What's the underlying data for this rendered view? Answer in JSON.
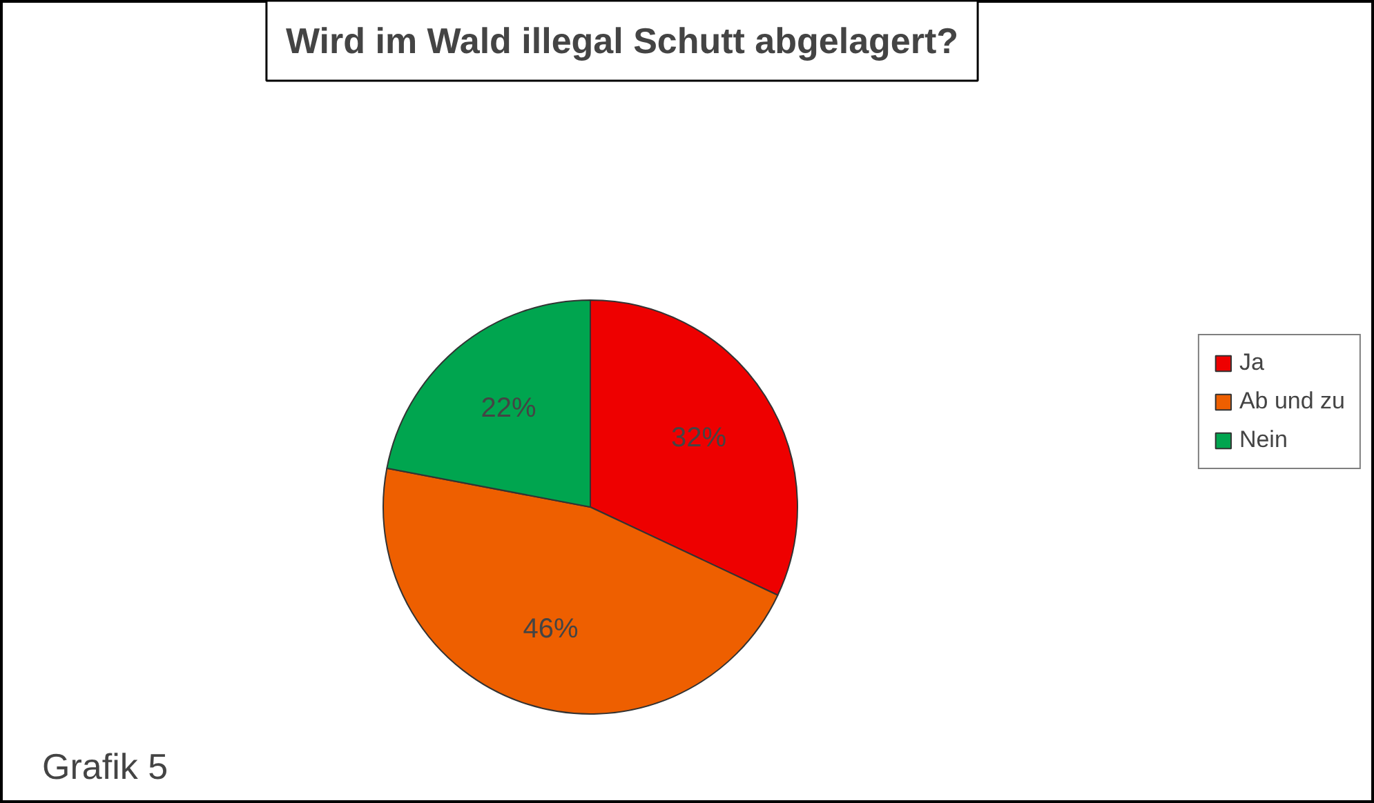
{
  "chart_data": {
    "type": "pie",
    "title": "Wird im Wald illegal Schutt abgelagert?",
    "categories": [
      "Ja",
      "Ab und zu",
      "Nein"
    ],
    "values": [
      32,
      46,
      22
    ],
    "colors": [
      "#ee0000",
      "#ee5f00",
      "#00a54f"
    ],
    "value_labels": [
      "32%",
      "46%",
      "22%"
    ],
    "legend": "right",
    "annotations": [
      "Grafik 5"
    ]
  }
}
